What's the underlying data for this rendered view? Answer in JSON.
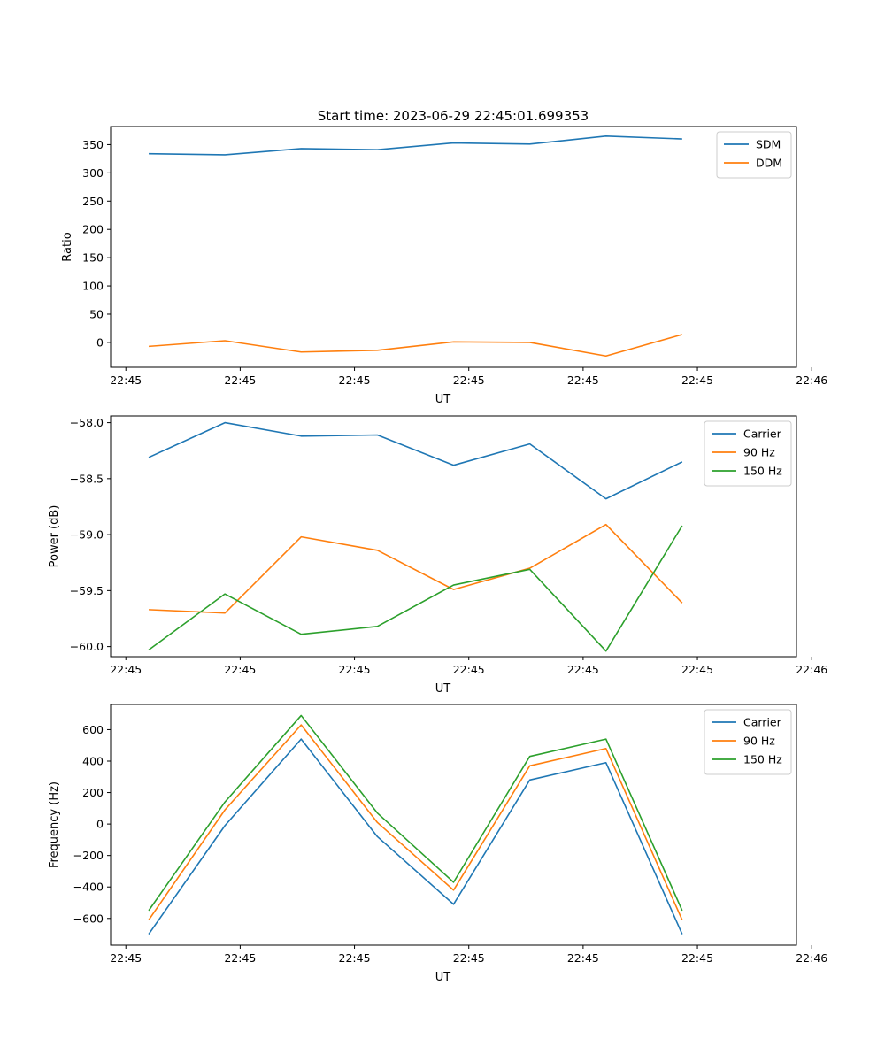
{
  "figure": {
    "title": "Start time: 2023-06-29 22:45:01.699353"
  },
  "chart_data": [
    {
      "type": "line",
      "title": "Start time: 2023-06-29 22:45:01.699353",
      "xlabel": "UT",
      "ylabel": "Ratio",
      "x": [
        0,
        1,
        2,
        3,
        4,
        5,
        6,
        7
      ],
      "xlim": [
        -0.5,
        8.5
      ],
      "x_tick_values": [
        -0.3,
        1.2,
        2.7,
        4.2,
        5.7,
        7.2,
        8.7
      ],
      "x_tick_labels": [
        "22:45",
        "22:45",
        "22:45",
        "22:45",
        "22:45",
        "22:45",
        "22:46"
      ],
      "ylim": [
        -44,
        382
      ],
      "y_ticks": [
        0,
        50,
        100,
        150,
        200,
        250,
        300,
        350
      ],
      "legend": "top-right",
      "grid": false,
      "series": [
        {
          "name": "SDM",
          "color": "#1f77b4",
          "values": [
            334,
            332,
            343,
            341,
            353,
            351,
            365,
            360
          ]
        },
        {
          "name": "DDM",
          "color": "#ff7f0e",
          "values": [
            -7,
            3,
            -17,
            -14,
            1,
            0,
            -24,
            14
          ]
        }
      ]
    },
    {
      "type": "line",
      "title": "",
      "xlabel": "UT",
      "ylabel": "Power (dB)",
      "x": [
        0,
        1,
        2,
        3,
        4,
        5,
        6,
        7
      ],
      "xlim": [
        -0.5,
        8.5
      ],
      "x_tick_values": [
        -0.3,
        1.2,
        2.7,
        4.2,
        5.7,
        7.2,
        8.7
      ],
      "x_tick_labels": [
        "22:45",
        "22:45",
        "22:45",
        "22:45",
        "22:45",
        "22:45",
        "22:46"
      ],
      "ylim": [
        -60.09,
        -57.94
      ],
      "y_ticks": [
        -60.0,
        -59.5,
        -59.0,
        -58.5,
        -58.0
      ],
      "y_tick_labels": [
        "−60.0",
        "−59.5",
        "−59.0",
        "−58.5",
        "−58.0"
      ],
      "legend": "top-right",
      "grid": false,
      "series": [
        {
          "name": "Carrier",
          "color": "#1f77b4",
          "values": [
            -58.31,
            -58.0,
            -58.12,
            -58.11,
            -58.38,
            -58.19,
            -58.68,
            -58.35
          ]
        },
        {
          "name": "90 Hz",
          "color": "#ff7f0e",
          "values": [
            -59.67,
            -59.7,
            -59.02,
            -59.14,
            -59.49,
            -59.3,
            -58.91,
            -59.61
          ]
        },
        {
          "name": "150 Hz",
          "color": "#2ca02c",
          "values": [
            -60.03,
            -59.53,
            -59.89,
            -59.82,
            -59.45,
            -59.31,
            -60.04,
            -58.92
          ]
        }
      ]
    },
    {
      "type": "line",
      "title": "",
      "xlabel": "UT",
      "ylabel": "Frequency (Hz)",
      "x": [
        0,
        1,
        2,
        3,
        4,
        5,
        6,
        7
      ],
      "xlim": [
        -0.5,
        8.5
      ],
      "x_tick_values": [
        -0.3,
        1.2,
        2.7,
        4.2,
        5.7,
        7.2,
        8.7
      ],
      "x_tick_labels": [
        "22:45",
        "22:45",
        "22:45",
        "22:45",
        "22:45",
        "22:45",
        "22:46"
      ],
      "ylim": [
        -770,
        760
      ],
      "y_ticks": [
        -600,
        -400,
        -200,
        0,
        200,
        400,
        600
      ],
      "y_tick_labels": [
        "−600",
        "−400",
        "−200",
        "0",
        "200",
        "400",
        "600"
      ],
      "legend": "top-right",
      "grid": false,
      "series": [
        {
          "name": "Carrier",
          "color": "#1f77b4",
          "values": [
            -700,
            -10,
            540,
            -80,
            -510,
            280,
            390,
            -700
          ]
        },
        {
          "name": "90 Hz",
          "color": "#ff7f0e",
          "values": [
            -610,
            90,
            630,
            10,
            -420,
            370,
            480,
            -610
          ]
        },
        {
          "name": "150 Hz",
          "color": "#2ca02c",
          "values": [
            -550,
            140,
            690,
            70,
            -370,
            430,
            540,
            -550
          ]
        }
      ]
    }
  ]
}
